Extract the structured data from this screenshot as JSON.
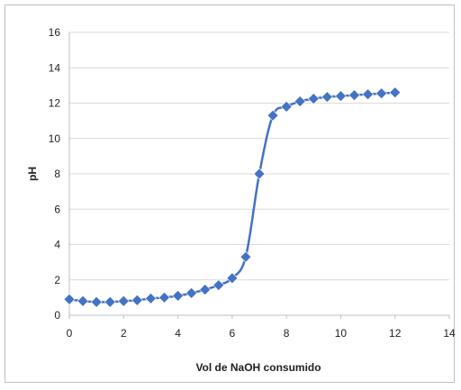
{
  "chart_data": {
    "type": "scatter",
    "title": "",
    "xlabel": "Vol de NaOH consumido",
    "ylabel": "pH",
    "xlim": [
      0,
      14
    ],
    "ylim": [
      0,
      16
    ],
    "xticks": [
      0,
      2,
      4,
      6,
      8,
      10,
      12,
      14
    ],
    "yticks": [
      0,
      2,
      4,
      6,
      8,
      10,
      12,
      14,
      16
    ],
    "grid": "horizontal",
    "legend": "none",
    "colors": {
      "series": "#4472c4",
      "grid": "#d9d9d9",
      "axis": "#bfbfbf"
    },
    "series": [
      {
        "marker": "diamond",
        "line": "smooth",
        "x": [
          0,
          0.5,
          1.0,
          1.5,
          2.0,
          2.5,
          3.0,
          3.5,
          4.0,
          4.5,
          5.0,
          5.5,
          6.0,
          6.5,
          7.0,
          7.5,
          8.0,
          8.5,
          9.0,
          9.5,
          10.0,
          10.5,
          11.0,
          11.5,
          12.0
        ],
        "y": [
          0.9,
          0.8,
          0.75,
          0.75,
          0.8,
          0.85,
          0.95,
          1.0,
          1.1,
          1.25,
          1.45,
          1.7,
          2.1,
          3.3,
          8.0,
          11.3,
          11.8,
          12.1,
          12.25,
          12.35,
          12.4,
          12.45,
          12.5,
          12.55,
          12.6
        ]
      }
    ]
  }
}
